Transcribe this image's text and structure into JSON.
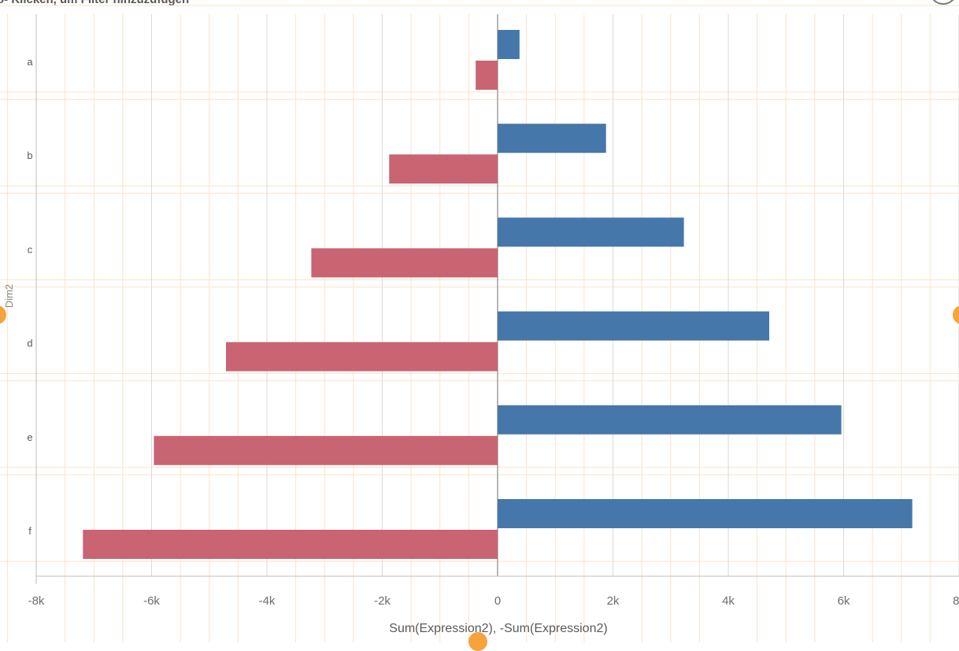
{
  "header": {
    "title": "o- Klicken, um Filter hinzuzufügen"
  },
  "colors": {
    "positive": "#4577aa",
    "negative": "#c96473",
    "major_grid": "#dadada",
    "minor_grid": "#fbe3c7",
    "axis": "#bdbdbd"
  },
  "chart_data": {
    "type": "bar",
    "orientation": "horizontal",
    "categories": [
      "a",
      "b",
      "c",
      "d",
      "e",
      "f"
    ],
    "series": [
      {
        "values": [
          380,
          1880,
          3230,
          4710,
          5960,
          7190
        ]
      },
      {
        "values": [
          -380,
          -1880,
          -3230,
          -4710,
          -5960,
          -7190
        ]
      }
    ],
    "xlabel": "Sum(Expression2), -Sum(Expression2)",
    "ylabel": "Dim2",
    "xlim": [
      -8000,
      8000
    ],
    "x_ticks": [
      {
        "value": -8000,
        "label": "-8k"
      },
      {
        "value": -6000,
        "label": "-6k"
      },
      {
        "value": -4000,
        "label": "-4k"
      },
      {
        "value": -2000,
        "label": "-2k"
      },
      {
        "value": 0,
        "label": "0"
      },
      {
        "value": 2000,
        "label": "2k"
      },
      {
        "value": 4000,
        "label": "4k"
      },
      {
        "value": 6000,
        "label": "6k"
      },
      {
        "value": 8000,
        "label": "8k"
      }
    ],
    "grid": true,
    "legend": "none"
  }
}
